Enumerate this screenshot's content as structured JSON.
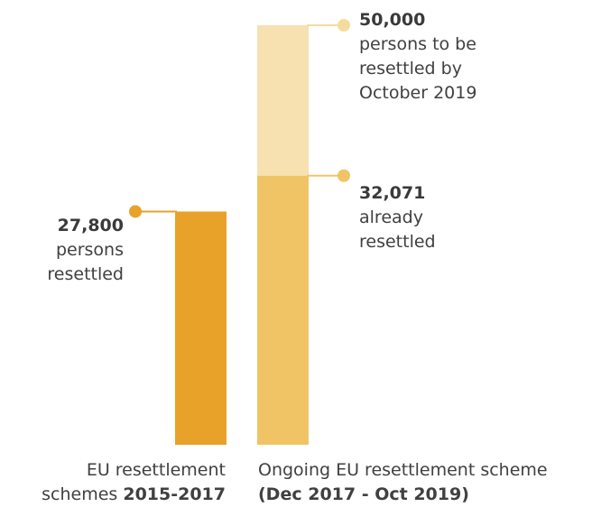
{
  "chart_data": {
    "type": "bar",
    "colors": {
      "scheme_2015": "#e8a229",
      "target_remaining": "#f7e1b0",
      "already": "#f0c465",
      "dot_2015": "#e8a229",
      "dot_target": "#f5dc9c",
      "dot_already": "#f0c465"
    },
    "bars": [
      {
        "category": "EU resettlement schemes 2015-2017",
        "value": 27800,
        "value_label": "27,800",
        "label_lines": [
          "persons",
          "resettled"
        ]
      },
      {
        "category": "Ongoing EU resettlement scheme (Dec 2017 - Oct 2019)",
        "target": 50000,
        "target_label": "50,000",
        "target_lines": [
          "persons to be",
          "resettled by",
          "October 2019"
        ],
        "value": 32071,
        "value_label": "32,071",
        "value_lines": [
          "already",
          "resettled"
        ]
      }
    ],
    "categories": {
      "left": {
        "normal": "EU resettlement",
        "normal2": "schemes ",
        "bold": "2015-2017"
      },
      "right": {
        "normal": "Ongoing EU resettlement scheme",
        "bold": "(Dec 2017 - Oct 2019)"
      }
    },
    "ylim": [
      0,
      50000
    ]
  }
}
